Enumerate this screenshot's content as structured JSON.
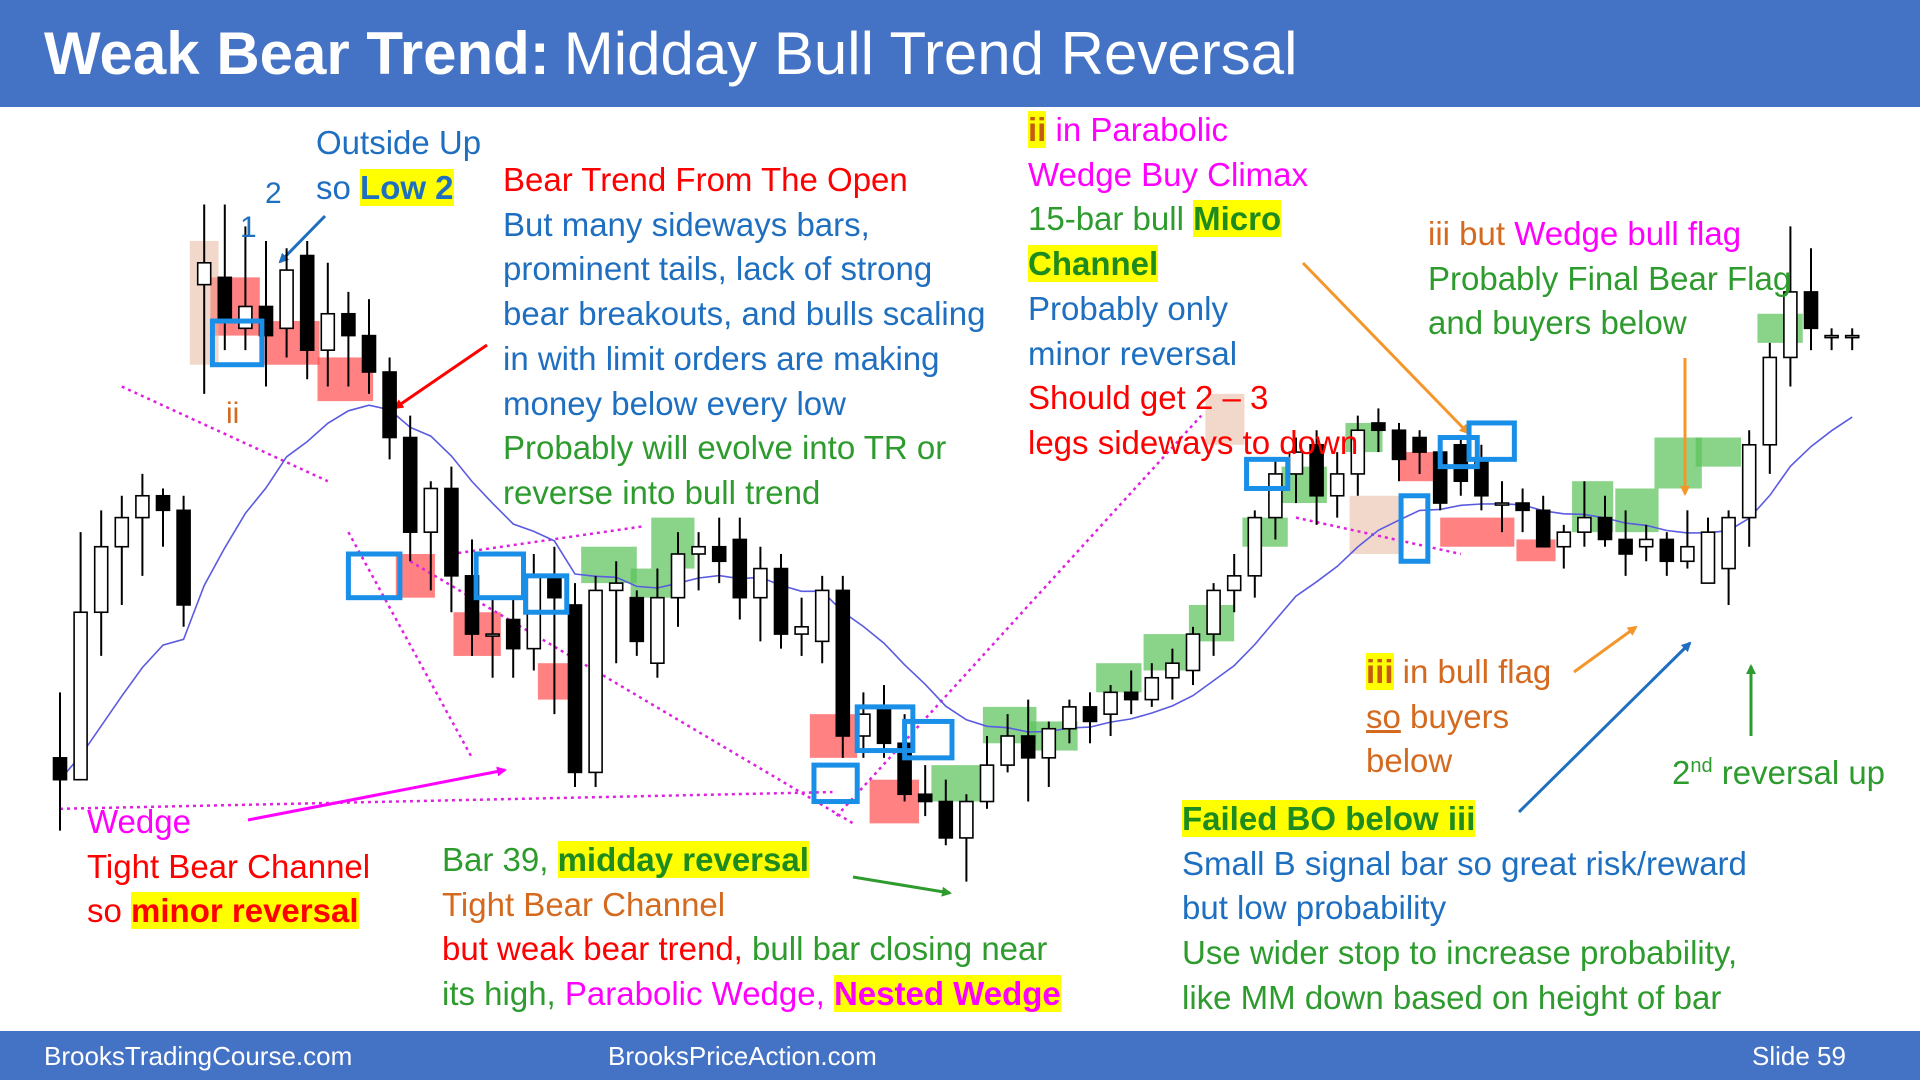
{
  "title": {
    "bold": "Weak Bear Trend:",
    "rest": "Midday Bull Trend Reversal"
  },
  "footer": {
    "left": "BrooksTradingCourse.com",
    "center": "BrooksPriceAction.com",
    "slide": "Slide  59"
  },
  "colors": {
    "header": "#4472c4",
    "bull_zone": "#5cc35c",
    "bear_zone": "#ff5050",
    "ema": "#5b5be0",
    "signal_box": "#1a8fe8",
    "trendline": "#e020e0"
  },
  "annotations": {
    "outside_up": {
      "l1": "Outside Up",
      "l2a": "so ",
      "l2b": "Low 2"
    },
    "num_1": "1",
    "num_2": "2",
    "ii_left": "ii",
    "bear_trend": {
      "l1": "Bear Trend From The Open",
      "l2": "But many sideways bars,",
      "l3": "prominent tails, lack of strong",
      "l4": "bear breakouts, and bulls scaling",
      "l5": "in with limit orders are making",
      "l6": "money below every low",
      "l7": "Probably will evolve into TR or",
      "l8": "reverse into bull trend"
    },
    "parabolic": {
      "l1a": "ii",
      "l1b": " in Parabolic",
      "l2": "Wedge Buy Climax",
      "l3a": "15-bar bull ",
      "l3b": "Micro",
      "l4": "Channel",
      "l5": "Probably only",
      "l6": "minor reversal",
      "l7": "Should get 2 – 3",
      "l8": "legs sideways to down"
    },
    "iii_wedge": {
      "l1a": "iii but ",
      "l1b": "Wedge bull flag",
      "l2": "Probably Final Bear Flag",
      "l3": "and buyers below"
    },
    "wedge": {
      "l1": "Wedge",
      "l2": "Tight Bear Channel",
      "l3a": "so ",
      "l3b": "minor reversal"
    },
    "bar39": {
      "l1a": "Bar 39, ",
      "l1b": "midday reversal",
      "l2": "Tight Bear Channel",
      "l3a": "but weak bear trend, ",
      "l3b": "bull bar closing near",
      "l4a": "its high, ",
      "l4b": "Parabolic Wedge, ",
      "l4c": "Nested Wedge"
    },
    "iii_flag": {
      "l1a": "iii",
      "l1b": " in bull flag",
      "l2a": "so",
      "l2b": " buyers",
      "l3": "below"
    },
    "failed_bo": {
      "l1": "Failed BO below iii",
      "l2": "Small B signal bar so great risk/reward",
      "l3": "but low probability",
      "l4": "Use wider stop to increase probability,",
      "l5": "like MM down based on height of bar"
    },
    "second_reversal": {
      "base": "2",
      "sup": "nd",
      "rest": " reversal up"
    }
  },
  "chart_data": {
    "type": "candlestick",
    "title": "",
    "xlabel": "",
    "ylabel": "",
    "grid": false,
    "legend": "none",
    "y_direction": "higher value = higher price (unlabeled price axis)",
    "price_range": [
      0,
      100
    ],
    "bars": [
      {
        "o": 22,
        "h": 31,
        "l": 12,
        "c": 19
      },
      {
        "o": 19,
        "h": 53,
        "l": 19,
        "c": 42
      },
      {
        "o": 42,
        "h": 56,
        "l": 36,
        "c": 51
      },
      {
        "o": 51,
        "h": 58,
        "l": 43,
        "c": 55
      },
      {
        "o": 55,
        "h": 61,
        "l": 47,
        "c": 58
      },
      {
        "o": 58,
        "h": 59,
        "l": 51,
        "c": 56
      },
      {
        "o": 56,
        "h": 58,
        "l": 40,
        "c": 43
      },
      {
        "o": 87,
        "h": 98,
        "l": 72,
        "c": 90
      },
      {
        "o": 88,
        "h": 98,
        "l": 78,
        "c": 82
      },
      {
        "o": 81,
        "h": 95,
        "l": 78,
        "c": 84
      },
      {
        "o": 84,
        "h": 93,
        "l": 73,
        "c": 80
      },
      {
        "o": 81,
        "h": 92,
        "l": 77,
        "c": 89
      },
      {
        "o": 91,
        "h": 93,
        "l": 74,
        "c": 78
      },
      {
        "o": 78,
        "h": 90,
        "l": 73,
        "c": 83
      },
      {
        "o": 83,
        "h": 86,
        "l": 73,
        "c": 80
      },
      {
        "o": 80,
        "h": 85,
        "l": 72,
        "c": 75
      },
      {
        "o": 75,
        "h": 77,
        "l": 63,
        "c": 66
      },
      {
        "o": 66,
        "h": 69,
        "l": 49,
        "c": 53
      },
      {
        "o": 53,
        "h": 60,
        "l": 45,
        "c": 59
      },
      {
        "o": 59,
        "h": 62,
        "l": 42,
        "c": 47
      },
      {
        "o": 47,
        "h": 52,
        "l": 36,
        "c": 39
      },
      {
        "o": 39,
        "h": 44,
        "l": 33,
        "c": 39
      },
      {
        "o": 41,
        "h": 44,
        "l": 33,
        "c": 37
      },
      {
        "o": 37,
        "h": 50,
        "l": 34,
        "c": 47
      },
      {
        "o": 47,
        "h": 51,
        "l": 28,
        "c": 44
      },
      {
        "o": 43,
        "h": 46,
        "l": 18,
        "c": 20
      },
      {
        "o": 20,
        "h": 47,
        "l": 18,
        "c": 45
      },
      {
        "o": 45,
        "h": 49,
        "l": 35,
        "c": 46
      },
      {
        "o": 44,
        "h": 45,
        "l": 36,
        "c": 38
      },
      {
        "o": 35,
        "h": 48,
        "l": 33,
        "c": 44
      },
      {
        "o": 44,
        "h": 53,
        "l": 40,
        "c": 50
      },
      {
        "o": 50,
        "h": 53,
        "l": 45,
        "c": 51
      },
      {
        "o": 51,
        "h": 55,
        "l": 46,
        "c": 49
      },
      {
        "o": 52,
        "h": 55,
        "l": 41,
        "c": 44
      },
      {
        "o": 44,
        "h": 51,
        "l": 38,
        "c": 48
      },
      {
        "o": 48,
        "h": 50,
        "l": 37,
        "c": 39
      },
      {
        "o": 39,
        "h": 44,
        "l": 36,
        "c": 40
      },
      {
        "o": 38,
        "h": 47,
        "l": 35,
        "c": 45
      },
      {
        "o": 45,
        "h": 47,
        "l": 22,
        "c": 25
      },
      {
        "o": 25,
        "h": 31,
        "l": 22,
        "c": 28
      },
      {
        "o": 29,
        "h": 32,
        "l": 22,
        "c": 24
      },
      {
        "o": 24,
        "h": 28,
        "l": 16,
        "c": 17
      },
      {
        "o": 17,
        "h": 21,
        "l": 14,
        "c": 16
      },
      {
        "o": 16,
        "h": 19,
        "l": 10,
        "c": 11
      },
      {
        "o": 11,
        "h": 17,
        "l": 5,
        "c": 16
      },
      {
        "o": 16,
        "h": 25,
        "l": 15,
        "c": 21
      },
      {
        "o": 21,
        "h": 28,
        "l": 20,
        "c": 25
      },
      {
        "o": 25,
        "h": 30,
        "l": 16,
        "c": 22
      },
      {
        "o": 22,
        "h": 27,
        "l": 18,
        "c": 26
      },
      {
        "o": 26,
        "h": 30,
        "l": 24,
        "c": 29
      },
      {
        "o": 29,
        "h": 31,
        "l": 24,
        "c": 27
      },
      {
        "o": 28,
        "h": 32,
        "l": 25,
        "c": 31
      },
      {
        "o": 31,
        "h": 34,
        "l": 28,
        "c": 30
      },
      {
        "o": 30,
        "h": 35,
        "l": 29,
        "c": 33
      },
      {
        "o": 33,
        "h": 37,
        "l": 30,
        "c": 35
      },
      {
        "o": 34,
        "h": 40,
        "l": 32,
        "c": 39
      },
      {
        "o": 39,
        "h": 46,
        "l": 36,
        "c": 45
      },
      {
        "o": 45,
        "h": 50,
        "l": 42,
        "c": 47
      },
      {
        "o": 47,
        "h": 56,
        "l": 44,
        "c": 55
      },
      {
        "o": 55,
        "h": 63,
        "l": 52,
        "c": 61
      },
      {
        "o": 61,
        "h": 66,
        "l": 57,
        "c": 64
      },
      {
        "o": 65,
        "h": 67,
        "l": 54,
        "c": 58
      },
      {
        "o": 58,
        "h": 64,
        "l": 55,
        "c": 61
      },
      {
        "o": 61,
        "h": 69,
        "l": 58,
        "c": 67
      },
      {
        "o": 68,
        "h": 70,
        "l": 64,
        "c": 67
      },
      {
        "o": 67,
        "h": 68,
        "l": 60,
        "c": 63
      },
      {
        "o": 66,
        "h": 67,
        "l": 61,
        "c": 64
      },
      {
        "o": 64,
        "h": 66,
        "l": 56,
        "c": 57
      },
      {
        "o": 65,
        "h": 66,
        "l": 58,
        "c": 60
      },
      {
        "o": 63,
        "h": 65,
        "l": 56,
        "c": 58
      },
      {
        "o": 57,
        "h": 60,
        "l": 53,
        "c": 57
      },
      {
        "o": 57,
        "h": 59,
        "l": 53,
        "c": 56
      },
      {
        "o": 56,
        "h": 58,
        "l": 51,
        "c": 51
      },
      {
        "o": 51,
        "h": 54,
        "l": 48,
        "c": 53
      },
      {
        "o": 53,
        "h": 60,
        "l": 51,
        "c": 55
      },
      {
        "o": 55,
        "h": 58,
        "l": 51,
        "c": 52
      },
      {
        "o": 52,
        "h": 56,
        "l": 47,
        "c": 50
      },
      {
        "o": 51,
        "h": 54,
        "l": 49,
        "c": 52
      },
      {
        "o": 52,
        "h": 53,
        "l": 47,
        "c": 49
      },
      {
        "o": 49,
        "h": 56,
        "l": 48,
        "c": 51
      },
      {
        "o": 46,
        "h": 55,
        "l": 46,
        "c": 53
      },
      {
        "o": 48,
        "h": 56,
        "l": 43,
        "c": 55
      },
      {
        "o": 55,
        "h": 67,
        "l": 51,
        "c": 65
      },
      {
        "o": 65,
        "h": 79,
        "l": 61,
        "c": 77
      },
      {
        "o": 77,
        "h": 95,
        "l": 73,
        "c": 86
      },
      {
        "o": 86,
        "h": 92,
        "l": 78,
        "c": 81
      },
      {
        "o": 80,
        "h": 81,
        "l": 78,
        "c": 80
      },
      {
        "o": 80,
        "h": 81,
        "l": 78,
        "c": 80
      }
    ],
    "series": [
      {
        "name": "",
        "kind": "moving average (EMA)"
      }
    ],
    "labeled_bars": {
      "bar_39": "midday reversal"
    }
  }
}
